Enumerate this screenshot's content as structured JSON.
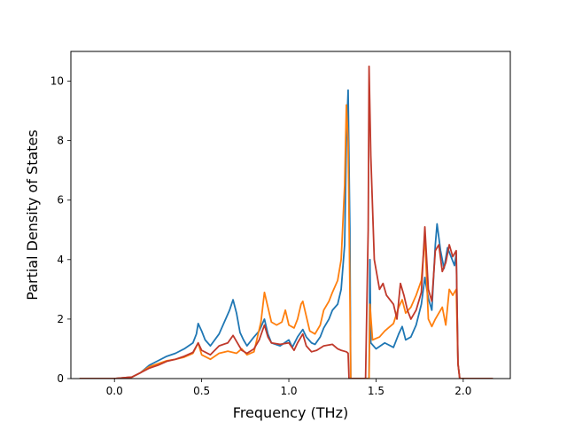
{
  "chart_data": {
    "type": "line",
    "title": "",
    "xlabel": "Frequency (THz)",
    "ylabel": "Partial Density of States",
    "xlim": [
      -0.25,
      2.27
    ],
    "ylim": [
      0,
      11
    ],
    "xticks": [
      0.0,
      0.5,
      1.0,
      1.5,
      2.0
    ],
    "xtick_labels": [
      "0.0",
      "0.5",
      "1.0",
      "1.5",
      "2.0"
    ],
    "yticks": [
      0,
      2,
      4,
      6,
      8,
      10
    ],
    "ytick_labels": [
      "0",
      "2",
      "4",
      "6",
      "8",
      "10"
    ],
    "grid": false,
    "legend": false,
    "series": [
      {
        "color": "#1f77b4",
        "points": [
          [
            -0.2,
            0
          ],
          [
            0.0,
            0
          ],
          [
            0.1,
            0.05
          ],
          [
            0.15,
            0.2
          ],
          [
            0.2,
            0.45
          ],
          [
            0.25,
            0.6
          ],
          [
            0.3,
            0.75
          ],
          [
            0.35,
            0.85
          ],
          [
            0.4,
            1.0
          ],
          [
            0.45,
            1.2
          ],
          [
            0.47,
            1.5
          ],
          [
            0.48,
            1.85
          ],
          [
            0.5,
            1.6
          ],
          [
            0.52,
            1.3
          ],
          [
            0.55,
            1.1
          ],
          [
            0.6,
            1.5
          ],
          [
            0.63,
            1.9
          ],
          [
            0.66,
            2.3
          ],
          [
            0.68,
            2.65
          ],
          [
            0.7,
            2.2
          ],
          [
            0.72,
            1.55
          ],
          [
            0.74,
            1.3
          ],
          [
            0.76,
            1.1
          ],
          [
            0.8,
            1.4
          ],
          [
            0.83,
            1.6
          ],
          [
            0.86,
            2.0
          ],
          [
            0.88,
            1.5
          ],
          [
            0.9,
            1.2
          ],
          [
            0.95,
            1.1
          ],
          [
            1.0,
            1.3
          ],
          [
            1.02,
            1.05
          ],
          [
            1.05,
            1.4
          ],
          [
            1.08,
            1.65
          ],
          [
            1.1,
            1.4
          ],
          [
            1.13,
            1.2
          ],
          [
            1.15,
            1.15
          ],
          [
            1.18,
            1.4
          ],
          [
            1.2,
            1.7
          ],
          [
            1.23,
            2.0
          ],
          [
            1.25,
            2.3
          ],
          [
            1.28,
            2.5
          ],
          [
            1.3,
            3.0
          ],
          [
            1.32,
            4.5
          ],
          [
            1.33,
            8.0
          ],
          [
            1.34,
            9.7
          ],
          [
            1.35,
            5.0
          ],
          [
            1.355,
            0
          ],
          [
            1.46,
            0
          ],
          [
            1.465,
            4.0
          ],
          [
            1.47,
            1.2
          ],
          [
            1.5,
            1.0
          ],
          [
            1.55,
            1.2
          ],
          [
            1.6,
            1.05
          ],
          [
            1.63,
            1.5
          ],
          [
            1.65,
            1.75
          ],
          [
            1.67,
            1.3
          ],
          [
            1.7,
            1.4
          ],
          [
            1.73,
            1.8
          ],
          [
            1.76,
            2.5
          ],
          [
            1.78,
            3.4
          ],
          [
            1.8,
            2.7
          ],
          [
            1.82,
            2.3
          ],
          [
            1.84,
            4.5
          ],
          [
            1.85,
            5.2
          ],
          [
            1.87,
            4.3
          ],
          [
            1.89,
            3.7
          ],
          [
            1.91,
            4.4
          ],
          [
            1.93,
            4.1
          ],
          [
            1.95,
            3.8
          ],
          [
            1.96,
            4.2
          ],
          [
            1.97,
            0.5
          ],
          [
            1.98,
            0
          ],
          [
            2.17,
            0
          ]
        ]
      },
      {
        "color": "#ff7f0e",
        "points": [
          [
            -0.2,
            0
          ],
          [
            0.0,
            0
          ],
          [
            0.1,
            0.05
          ],
          [
            0.15,
            0.2
          ],
          [
            0.2,
            0.4
          ],
          [
            0.25,
            0.5
          ],
          [
            0.3,
            0.6
          ],
          [
            0.35,
            0.65
          ],
          [
            0.4,
            0.72
          ],
          [
            0.45,
            0.85
          ],
          [
            0.48,
            1.2
          ],
          [
            0.5,
            0.8
          ],
          [
            0.55,
            0.65
          ],
          [
            0.6,
            0.85
          ],
          [
            0.65,
            0.92
          ],
          [
            0.7,
            0.85
          ],
          [
            0.73,
            1.0
          ],
          [
            0.76,
            0.8
          ],
          [
            0.8,
            0.9
          ],
          [
            0.84,
            1.9
          ],
          [
            0.86,
            2.9
          ],
          [
            0.88,
            2.4
          ],
          [
            0.9,
            1.9
          ],
          [
            0.93,
            1.8
          ],
          [
            0.96,
            1.9
          ],
          [
            0.98,
            2.3
          ],
          [
            1.0,
            1.8
          ],
          [
            1.03,
            1.7
          ],
          [
            1.05,
            2.0
          ],
          [
            1.07,
            2.5
          ],
          [
            1.08,
            2.6
          ],
          [
            1.1,
            2.1
          ],
          [
            1.12,
            1.6
          ],
          [
            1.15,
            1.5
          ],
          [
            1.18,
            1.8
          ],
          [
            1.2,
            2.3
          ],
          [
            1.23,
            2.6
          ],
          [
            1.25,
            2.9
          ],
          [
            1.28,
            3.3
          ],
          [
            1.3,
            4.0
          ],
          [
            1.32,
            6.5
          ],
          [
            1.33,
            9.2
          ],
          [
            1.34,
            8.0
          ],
          [
            1.35,
            3.0
          ],
          [
            1.355,
            0
          ],
          [
            1.46,
            0
          ],
          [
            1.465,
            2.5
          ],
          [
            1.48,
            1.3
          ],
          [
            1.52,
            1.4
          ],
          [
            1.55,
            1.6
          ],
          [
            1.6,
            1.85
          ],
          [
            1.63,
            2.4
          ],
          [
            1.65,
            2.65
          ],
          [
            1.67,
            2.2
          ],
          [
            1.7,
            2.4
          ],
          [
            1.73,
            2.8
          ],
          [
            1.76,
            3.3
          ],
          [
            1.78,
            4.8
          ],
          [
            1.8,
            2.0
          ],
          [
            1.82,
            1.75
          ],
          [
            1.84,
            2.0
          ],
          [
            1.86,
            2.2
          ],
          [
            1.88,
            2.4
          ],
          [
            1.9,
            1.8
          ],
          [
            1.92,
            3.0
          ],
          [
            1.94,
            2.8
          ],
          [
            1.96,
            3.0
          ],
          [
            1.97,
            0.5
          ],
          [
            1.98,
            0
          ],
          [
            2.17,
            0
          ]
        ]
      },
      {
        "color": "#c0392b",
        "points": [
          [
            -0.2,
            0
          ],
          [
            0.0,
            0
          ],
          [
            0.1,
            0.05
          ],
          [
            0.15,
            0.2
          ],
          [
            0.2,
            0.35
          ],
          [
            0.25,
            0.45
          ],
          [
            0.3,
            0.58
          ],
          [
            0.35,
            0.65
          ],
          [
            0.4,
            0.75
          ],
          [
            0.45,
            0.88
          ],
          [
            0.48,
            1.2
          ],
          [
            0.5,
            0.95
          ],
          [
            0.55,
            0.8
          ],
          [
            0.6,
            1.1
          ],
          [
            0.65,
            1.2
          ],
          [
            0.68,
            1.45
          ],
          [
            0.7,
            1.25
          ],
          [
            0.73,
            0.95
          ],
          [
            0.76,
            0.85
          ],
          [
            0.8,
            1.0
          ],
          [
            0.83,
            1.3
          ],
          [
            0.86,
            1.8
          ],
          [
            0.88,
            1.4
          ],
          [
            0.9,
            1.2
          ],
          [
            0.95,
            1.15
          ],
          [
            1.0,
            1.2
          ],
          [
            1.03,
            0.95
          ],
          [
            1.05,
            1.2
          ],
          [
            1.08,
            1.5
          ],
          [
            1.1,
            1.1
          ],
          [
            1.13,
            0.9
          ],
          [
            1.16,
            0.95
          ],
          [
            1.2,
            1.1
          ],
          [
            1.25,
            1.15
          ],
          [
            1.28,
            1.0
          ],
          [
            1.3,
            0.95
          ],
          [
            1.33,
            0.9
          ],
          [
            1.34,
            0.85
          ],
          [
            1.345,
            0
          ],
          [
            1.44,
            0
          ],
          [
            1.455,
            5.0
          ],
          [
            1.46,
            10.5
          ],
          [
            1.47,
            7.5
          ],
          [
            1.49,
            4.0
          ],
          [
            1.52,
            3.0
          ],
          [
            1.54,
            3.2
          ],
          [
            1.56,
            2.8
          ],
          [
            1.6,
            2.5
          ],
          [
            1.62,
            2.0
          ],
          [
            1.64,
            3.2
          ],
          [
            1.66,
            2.8
          ],
          [
            1.68,
            2.3
          ],
          [
            1.7,
            2.0
          ],
          [
            1.73,
            2.3
          ],
          [
            1.76,
            2.9
          ],
          [
            1.78,
            5.1
          ],
          [
            1.8,
            3.0
          ],
          [
            1.82,
            2.6
          ],
          [
            1.84,
            4.3
          ],
          [
            1.86,
            4.5
          ],
          [
            1.88,
            3.6
          ],
          [
            1.9,
            3.9
          ],
          [
            1.92,
            4.5
          ],
          [
            1.94,
            4.1
          ],
          [
            1.96,
            4.3
          ],
          [
            1.97,
            0.5
          ],
          [
            1.98,
            0
          ],
          [
            2.17,
            0
          ]
        ]
      }
    ]
  }
}
